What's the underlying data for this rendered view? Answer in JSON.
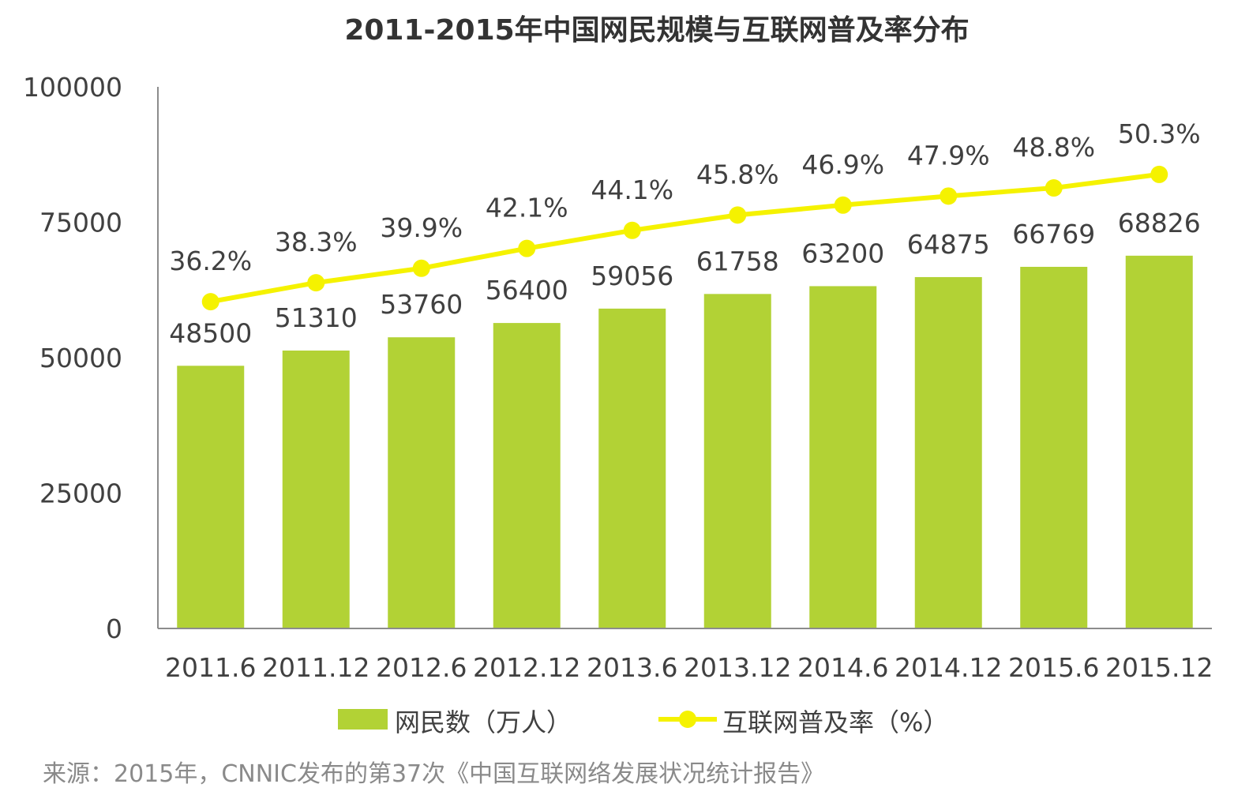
{
  "chart_data": {
    "type": "bar",
    "title": "2011-2015年中国网民规模与互联网普及率分布",
    "categories": [
      "2011.6",
      "2011.12",
      "2012.6",
      "2012.12",
      "2013.6",
      "2013.12",
      "2014.6",
      "2014.12",
      "2015.6",
      "2015.12"
    ],
    "series": [
      {
        "name": "网民数（万人）",
        "type": "bar",
        "axis": "left",
        "values": [
          48500,
          51310,
          53760,
          56400,
          59056,
          61758,
          63200,
          64875,
          66769,
          68826
        ],
        "labels": [
          "48500",
          "51310",
          "53760",
          "56400",
          "59056",
          "61758",
          "63200",
          "64875",
          "66769",
          "68826"
        ]
      },
      {
        "name": "互联网普及率（%）",
        "type": "line",
        "axis": "secondary",
        "values": [
          36.2,
          38.3,
          39.9,
          42.1,
          44.1,
          45.8,
          46.9,
          47.9,
          48.8,
          50.3
        ],
        "labels": [
          "36.2%",
          "38.3%",
          "39.9%",
          "42.1%",
          "44.1%",
          "45.8%",
          "46.9%",
          "47.9%",
          "48.8%",
          "50.3%"
        ]
      }
    ],
    "y_axis": {
      "ylim": [
        0,
        100000
      ],
      "ticks": [
        "0",
        "25000",
        "50000",
        "75000",
        "100000"
      ]
    },
    "secondary_axis_range": [
      0,
      60
    ],
    "grid": false,
    "legend_position": "bottom",
    "colors": {
      "bar": "#b2d235",
      "line": "#f5f200",
      "text": "#404040",
      "axis": "#8c8c8c",
      "source": "#8a8a8a"
    }
  },
  "source_note": "来源：2015年，CNNIC发布的第37次《中国互联网络发展状况统计报告》"
}
